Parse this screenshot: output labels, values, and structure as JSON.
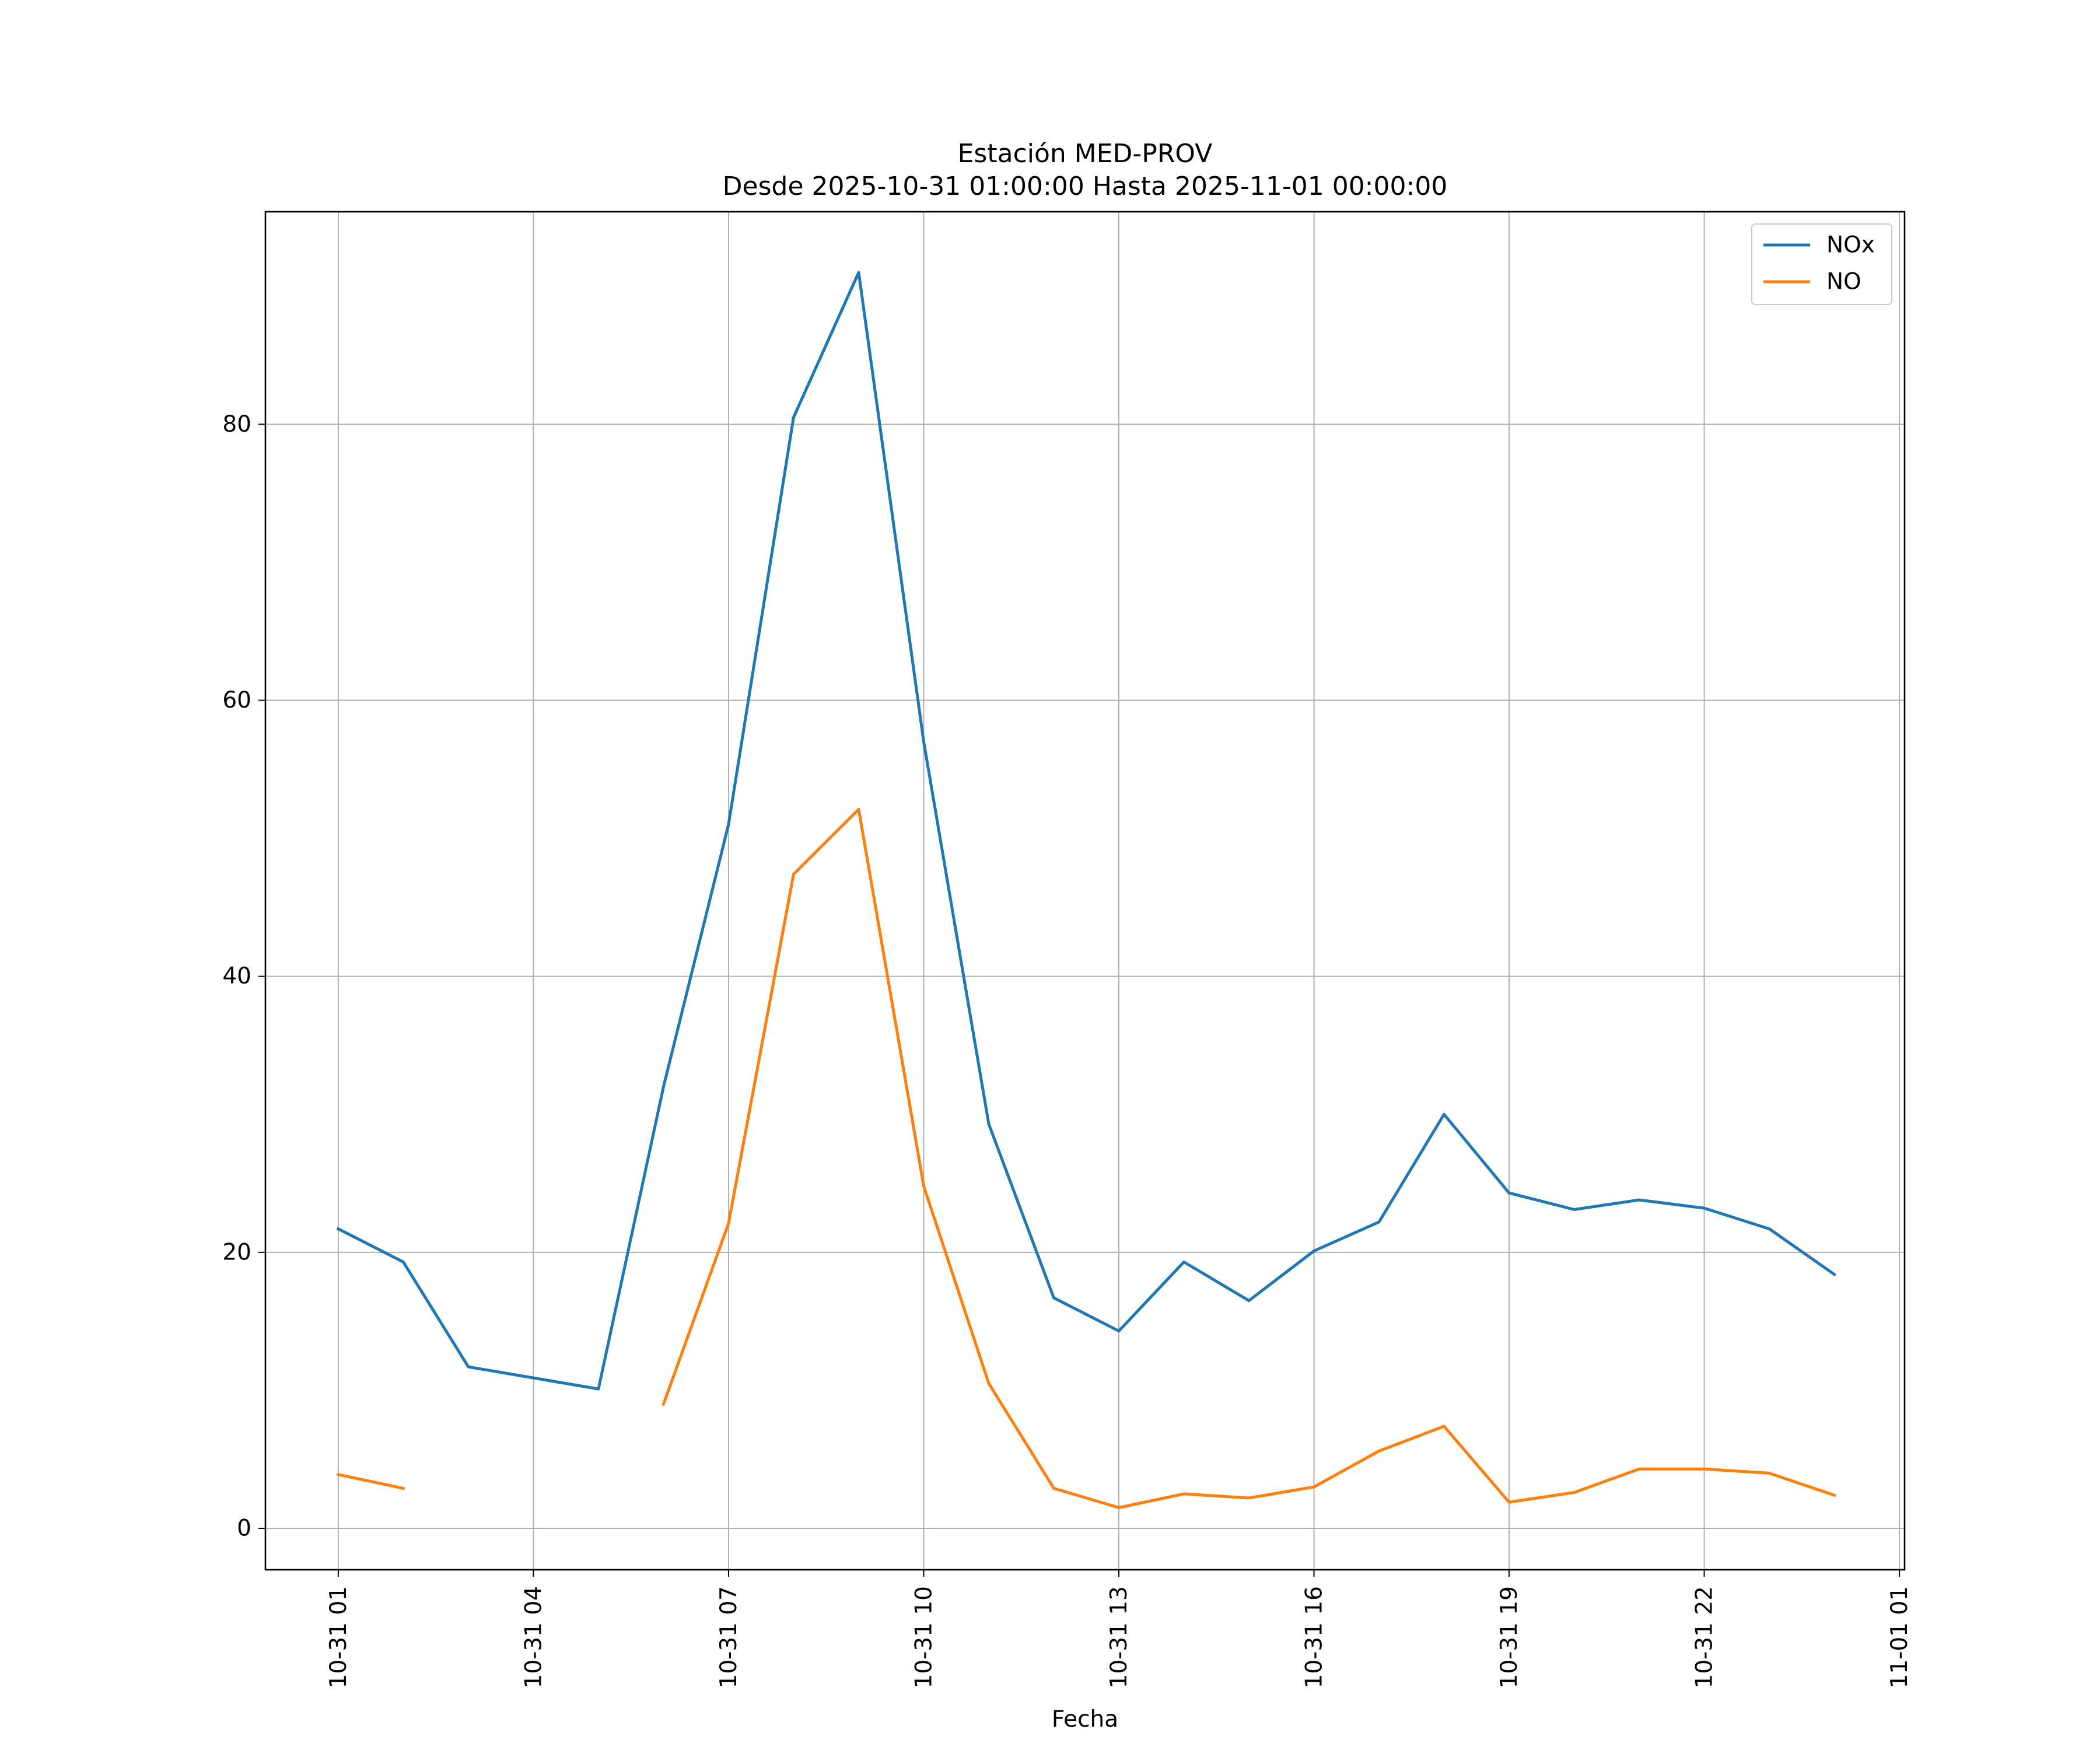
{
  "chart_data": {
    "type": "line",
    "title": "Estación MED-PROV",
    "subtitle": "Desde 2025-10-31 01:00:00 Hasta 2025-11-01 00:00:00",
    "xlabel": "Fecha",
    "ylabel": "",
    "x_hours": [
      1,
      2,
      3,
      4,
      5,
      6,
      7,
      8,
      9,
      10,
      11,
      12,
      13,
      14,
      15,
      16,
      17,
      18,
      19,
      20,
      21,
      22,
      23,
      24
    ],
    "x_ticks": [
      "10-31 01",
      "10-31 04",
      "10-31 07",
      "10-31 10",
      "10-31 13",
      "10-31 16",
      "10-31 19",
      "10-31 22",
      "11-01 01"
    ],
    "x_range_hours": [
      -0.12,
      25.08
    ],
    "y_ticks": [
      0,
      20,
      40,
      60,
      80
    ],
    "ylim": [
      -3,
      95.4
    ],
    "grid": true,
    "legend_position": "top-right",
    "series": [
      {
        "name": "NOx",
        "color": "#1f77b4",
        "values": [
          21.7,
          19.3,
          11.7,
          10.9,
          10.1,
          32.0,
          51.0,
          80.5,
          91.0,
          57.0,
          29.3,
          16.7,
          14.3,
          19.3,
          16.5,
          20.1,
          22.2,
          30.0,
          24.3,
          23.1,
          23.8,
          23.2,
          21.7,
          18.4
        ]
      },
      {
        "name": "NO",
        "color": "#ff7f0e",
        "values": [
          3.9,
          2.9,
          null,
          null,
          null,
          9.0,
          22.1,
          47.4,
          52.1,
          24.8,
          10.5,
          2.9,
          1.5,
          2.5,
          2.2,
          3.0,
          5.6,
          7.4,
          1.9,
          2.6,
          4.3,
          4.3,
          4.0,
          2.4
        ]
      }
    ]
  }
}
